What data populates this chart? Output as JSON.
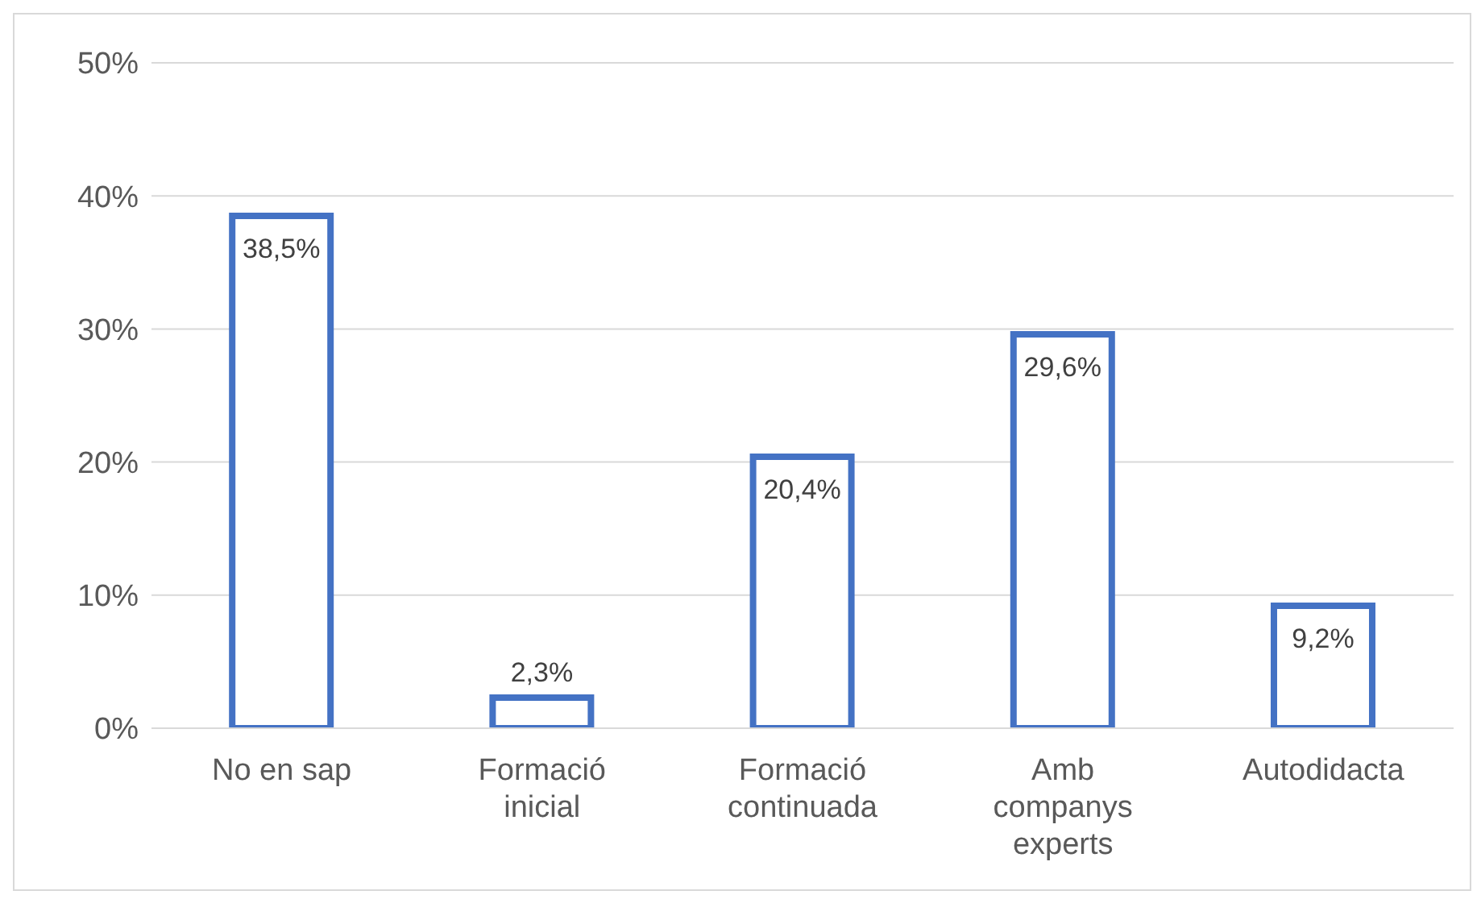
{
  "chart_data": {
    "type": "bar",
    "categories": [
      "No en sap",
      "Formació inicial",
      "Formació continuada",
      "Amb companys experts",
      "Autodidacta"
    ],
    "values": [
      38.5,
      2.3,
      20.4,
      29.6,
      9.2
    ],
    "value_labels": [
      "38,5%",
      "2,3%",
      "20,4%",
      "29,6%",
      "9,2%"
    ],
    "color": "#4472c4",
    "ylim": [
      0,
      50
    ],
    "yticks": [
      {
        "value": 0,
        "label": "0%"
      },
      {
        "value": 10,
        "label": "10%"
      },
      {
        "value": 20,
        "label": "20%"
      },
      {
        "value": 30,
        "label": "30%"
      },
      {
        "value": 40,
        "label": "40%"
      },
      {
        "value": 50,
        "label": "50%"
      }
    ],
    "grid": "y",
    "legend": false
  }
}
